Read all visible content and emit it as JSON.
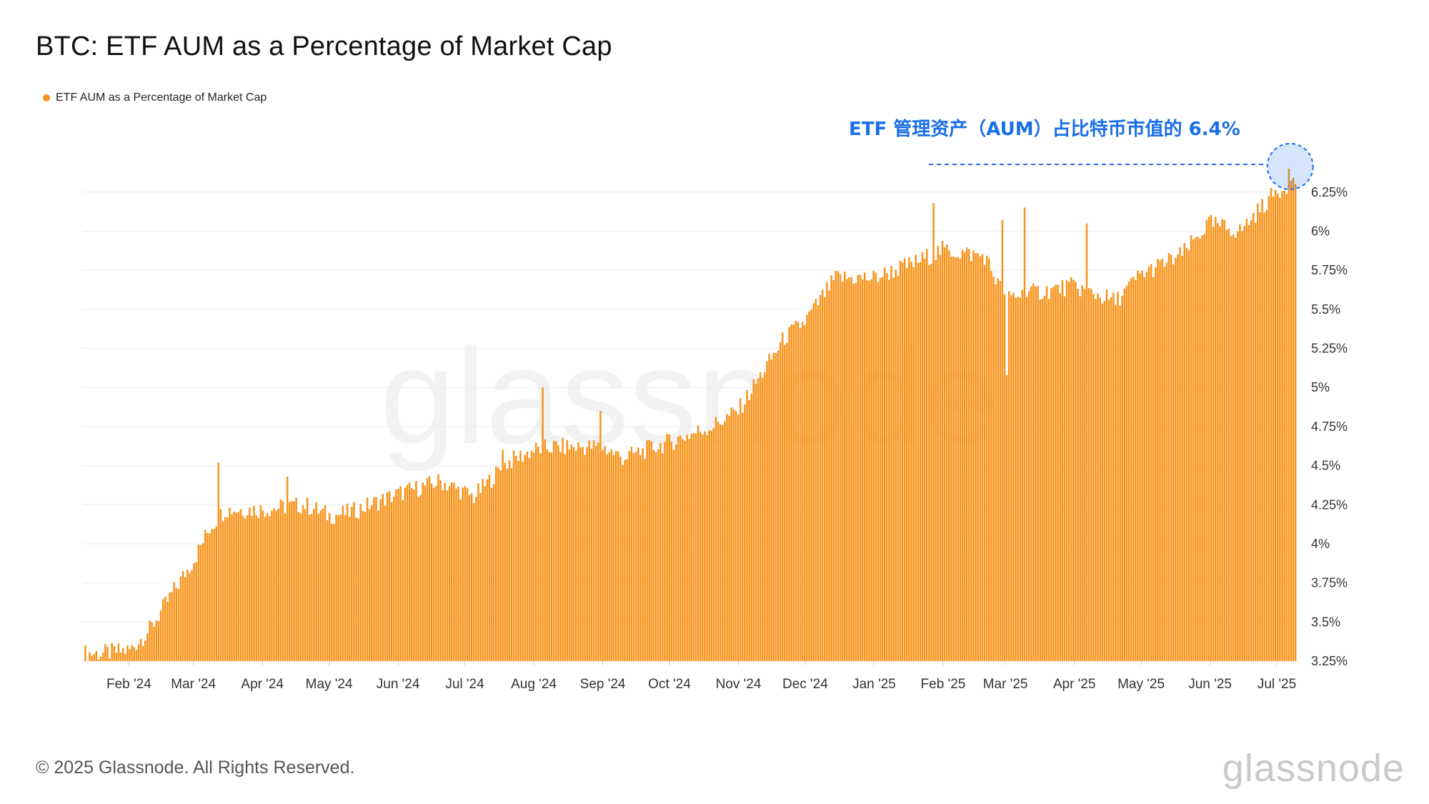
{
  "title": "BTC: ETF AUM as a Percentage of Market Cap",
  "legend": {
    "label": "ETF AUM as a Percentage of Market Cap",
    "color": "#f7931a"
  },
  "annotation": "ETF 管理资产（AUM）占比特币市值的 6.4%",
  "footer": "© 2025 Glassnode. All Rights Reserved.",
  "brand": "glassnode",
  "watermark": "glassnode",
  "colors": {
    "bar": "#f7931a",
    "annotation": "#1a6fe8",
    "grid": "#ececec",
    "axis_text": "#333333"
  },
  "chart_data": {
    "type": "bar",
    "title": "BTC: ETF AUM as a Percentage of Market Cap",
    "series_name": "ETF AUM as a Percentage of Market Cap",
    "x_start": "2024-01-11",
    "x_end": "2025-07-10",
    "ylim": [
      3.25,
      6.45
    ],
    "y_ticks": [
      3.25,
      3.5,
      3.75,
      4,
      4.25,
      4.5,
      4.75,
      5,
      5.25,
      5.5,
      5.75,
      6,
      6.25
    ],
    "y_tick_labels": [
      "3.25%",
      "3.5%",
      "3.75%",
      "4%",
      "4.25%",
      "4.5%",
      "4.75%",
      "5%",
      "5.25%",
      "5.5%",
      "5.75%",
      "6%",
      "6.25%"
    ],
    "x_tick_labels": [
      {
        "label": "Feb '24",
        "date": "2024-02-01"
      },
      {
        "label": "Mar '24",
        "date": "2024-03-01"
      },
      {
        "label": "Apr '24",
        "date": "2024-04-01"
      },
      {
        "label": "May '24",
        "date": "2024-05-01"
      },
      {
        "label": "Jun '24",
        "date": "2024-06-01"
      },
      {
        "label": "Jul '24",
        "date": "2024-07-01"
      },
      {
        "label": "Aug '24",
        "date": "2024-08-01"
      },
      {
        "label": "Sep '24",
        "date": "2024-09-01"
      },
      {
        "label": "Oct '24",
        "date": "2024-10-01"
      },
      {
        "label": "Nov '24",
        "date": "2024-11-01"
      },
      {
        "label": "Dec '24",
        "date": "2024-12-01"
      },
      {
        "label": "Jan '25",
        "date": "2025-01-01"
      },
      {
        "label": "Feb '25",
        "date": "2025-02-01"
      },
      {
        "label": "Mar '25",
        "date": "2025-03-01"
      },
      {
        "label": "Apr '25",
        "date": "2025-04-01"
      },
      {
        "label": "May '25",
        "date": "2025-05-01"
      },
      {
        "label": "Jun '25",
        "date": "2025-06-01"
      },
      {
        "label": "Jul '25",
        "date": "2025-07-01"
      }
    ],
    "trend": [
      {
        "date": "2024-01-11",
        "value": 3.3
      },
      {
        "date": "2024-01-20",
        "value": 3.3
      },
      {
        "date": "2024-02-01",
        "value": 3.32
      },
      {
        "date": "2024-02-10",
        "value": 3.45
      },
      {
        "date": "2024-02-20",
        "value": 3.68
      },
      {
        "date": "2024-03-01",
        "value": 3.9
      },
      {
        "date": "2024-03-08",
        "value": 4.1
      },
      {
        "date": "2024-03-15",
        "value": 4.22
      },
      {
        "date": "2024-04-01",
        "value": 4.22
      },
      {
        "date": "2024-04-20",
        "value": 4.25
      },
      {
        "date": "2024-05-01",
        "value": 4.18
      },
      {
        "date": "2024-05-10",
        "value": 4.2
      },
      {
        "date": "2024-06-01",
        "value": 4.32
      },
      {
        "date": "2024-06-20",
        "value": 4.4
      },
      {
        "date": "2024-07-05",
        "value": 4.3
      },
      {
        "date": "2024-07-20",
        "value": 4.52
      },
      {
        "date": "2024-08-01",
        "value": 4.6
      },
      {
        "date": "2024-08-10",
        "value": 4.62
      },
      {
        "date": "2024-09-01",
        "value": 4.62
      },
      {
        "date": "2024-09-10",
        "value": 4.55
      },
      {
        "date": "2024-10-01",
        "value": 4.65
      },
      {
        "date": "2024-10-20",
        "value": 4.75
      },
      {
        "date": "2024-11-01",
        "value": 4.85
      },
      {
        "date": "2024-11-10",
        "value": 5.05
      },
      {
        "date": "2024-11-22",
        "value": 5.32
      },
      {
        "date": "2024-12-01",
        "value": 5.42
      },
      {
        "date": "2024-12-15",
        "value": 5.7
      },
      {
        "date": "2025-01-01",
        "value": 5.7
      },
      {
        "date": "2025-01-20",
        "value": 5.8
      },
      {
        "date": "2025-02-01",
        "value": 5.88
      },
      {
        "date": "2025-02-20",
        "value": 5.84
      },
      {
        "date": "2025-03-01",
        "value": 5.58
      },
      {
        "date": "2025-03-20",
        "value": 5.62
      },
      {
        "date": "2025-04-01",
        "value": 5.65
      },
      {
        "date": "2025-04-20",
        "value": 5.55
      },
      {
        "date": "2025-05-01",
        "value": 5.72
      },
      {
        "date": "2025-05-20",
        "value": 5.85
      },
      {
        "date": "2025-06-01",
        "value": 6.05
      },
      {
        "date": "2025-06-15",
        "value": 6.0
      },
      {
        "date": "2025-07-01",
        "value": 6.25
      },
      {
        "date": "2025-07-10",
        "value": 6.32
      }
    ],
    "spikes": [
      {
        "date": "2024-03-12",
        "value": 4.52
      },
      {
        "date": "2024-04-12",
        "value": 4.43
      },
      {
        "date": "2024-07-18",
        "value": 4.6
      },
      {
        "date": "2024-08-05",
        "value": 5.0
      },
      {
        "date": "2024-08-31",
        "value": 4.85
      },
      {
        "date": "2025-01-28",
        "value": 6.18
      },
      {
        "date": "2025-02-28",
        "value": 6.07
      },
      {
        "date": "2025-03-02",
        "value": 5.08
      },
      {
        "date": "2025-03-10",
        "value": 6.15
      },
      {
        "date": "2025-04-07",
        "value": 6.05
      },
      {
        "date": "2025-07-07",
        "value": 6.4
      }
    ],
    "highlight": {
      "date": "2025-07-07",
      "value": 6.4,
      "label": "ETF 管理资产（AUM）占比特币市值的 6.4%"
    }
  }
}
